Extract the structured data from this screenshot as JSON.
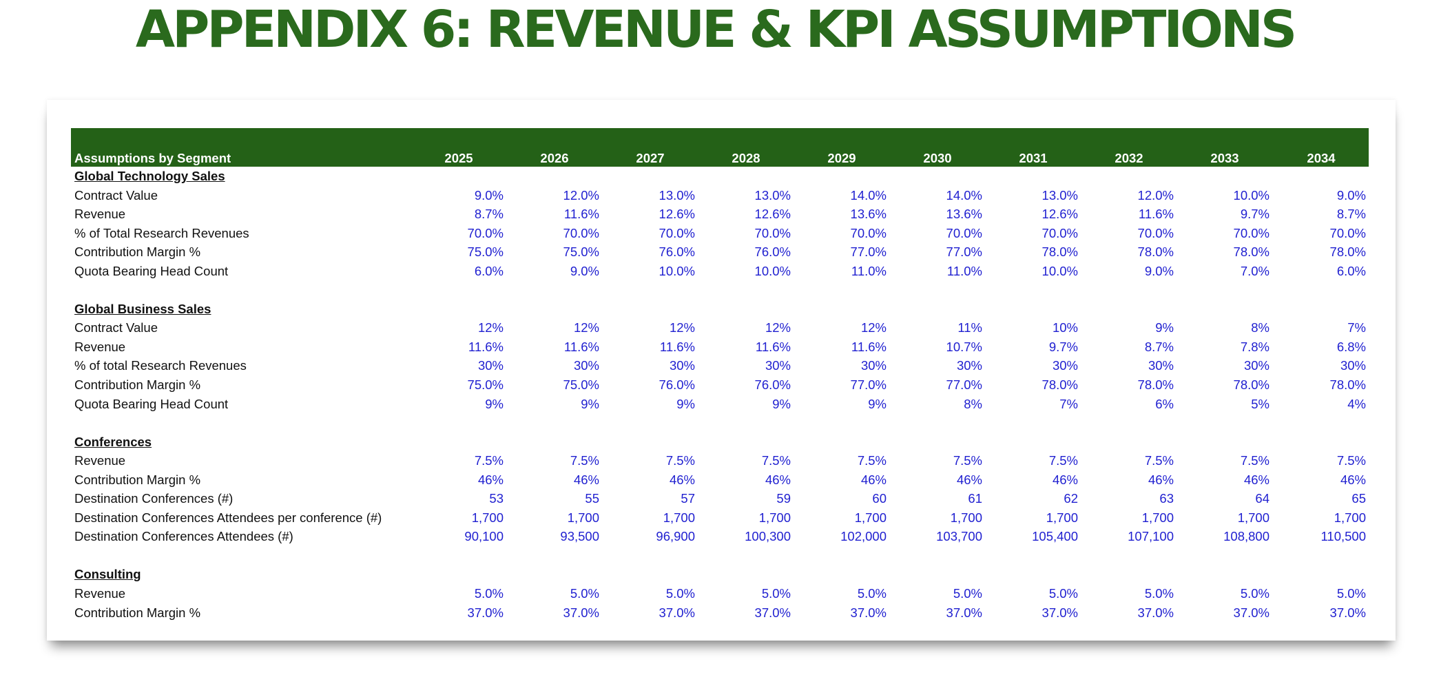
{
  "title": "APPENDIX 6: REVENUE & KPI ASSUMPTIONS",
  "table": {
    "header_label": "Assumptions by Segment",
    "years": [
      "2025",
      "2026",
      "2027",
      "2028",
      "2029",
      "2030",
      "2031",
      "2032",
      "2033",
      "2034"
    ],
    "sections": [
      {
        "name": "Global Technology Sales",
        "rows": [
          {
            "label": "Contract Value",
            "values": [
              "9.0%",
              "12.0%",
              "13.0%",
              "13.0%",
              "14.0%",
              "14.0%",
              "13.0%",
              "12.0%",
              "10.0%",
              "9.0%"
            ]
          },
          {
            "label": "Revenue",
            "values": [
              "8.7%",
              "11.6%",
              "12.6%",
              "12.6%",
              "13.6%",
              "13.6%",
              "12.6%",
              "11.6%",
              "9.7%",
              "8.7%"
            ]
          },
          {
            "label": "% of Total Research Revenues",
            "values": [
              "70.0%",
              "70.0%",
              "70.0%",
              "70.0%",
              "70.0%",
              "70.0%",
              "70.0%",
              "70.0%",
              "70.0%",
              "70.0%"
            ]
          },
          {
            "label": "Contribution Margin %",
            "values": [
              "75.0%",
              "75.0%",
              "76.0%",
              "76.0%",
              "77.0%",
              "77.0%",
              "78.0%",
              "78.0%",
              "78.0%",
              "78.0%"
            ]
          },
          {
            "label": "Quota Bearing Head Count",
            "values": [
              "6.0%",
              "9.0%",
              "10.0%",
              "10.0%",
              "11.0%",
              "11.0%",
              "10.0%",
              "9.0%",
              "7.0%",
              "6.0%"
            ]
          }
        ]
      },
      {
        "name": "Global Business Sales",
        "rows": [
          {
            "label": "Contract Value",
            "values": [
              "12%",
              "12%",
              "12%",
              "12%",
              "12%",
              "11%",
              "10%",
              "9%",
              "8%",
              "7%"
            ]
          },
          {
            "label": "Revenue",
            "values": [
              "11.6%",
              "11.6%",
              "11.6%",
              "11.6%",
              "11.6%",
              "10.7%",
              "9.7%",
              "8.7%",
              "7.8%",
              "6.8%"
            ]
          },
          {
            "label": "% of total Research Revenues",
            "values": [
              "30%",
              "30%",
              "30%",
              "30%",
              "30%",
              "30%",
              "30%",
              "30%",
              "30%",
              "30%"
            ]
          },
          {
            "label": "Contribution Margin %",
            "values": [
              "75.0%",
              "75.0%",
              "76.0%",
              "76.0%",
              "77.0%",
              "77.0%",
              "78.0%",
              "78.0%",
              "78.0%",
              "78.0%"
            ]
          },
          {
            "label": "Quota Bearing Head Count",
            "values": [
              "9%",
              "9%",
              "9%",
              "9%",
              "9%",
              "8%",
              "7%",
              "6%",
              "5%",
              "4%"
            ]
          }
        ]
      },
      {
        "name": "Conferences",
        "rows": [
          {
            "label": "Revenue",
            "values": [
              "7.5%",
              "7.5%",
              "7.5%",
              "7.5%",
              "7.5%",
              "7.5%",
              "7.5%",
              "7.5%",
              "7.5%",
              "7.5%"
            ]
          },
          {
            "label": "Contribution Margin %",
            "values": [
              "46%",
              "46%",
              "46%",
              "46%",
              "46%",
              "46%",
              "46%",
              "46%",
              "46%",
              "46%"
            ]
          },
          {
            "label": "Destination Conferences (#)",
            "values": [
              "53",
              "55",
              "57",
              "59",
              "60",
              "61",
              "62",
              "63",
              "64",
              "65"
            ]
          },
          {
            "label": "Destination Conferences Attendees per conference (#)",
            "values": [
              "1,700",
              "1,700",
              "1,700",
              "1,700",
              "1,700",
              "1,700",
              "1,700",
              "1,700",
              "1,700",
              "1,700"
            ]
          },
          {
            "label": "Destination Conferences Attendees (#)",
            "values": [
              "90,100",
              "93,500",
              "96,900",
              "100,300",
              "102,000",
              "103,700",
              "105,400",
              "107,100",
              "108,800",
              "110,500"
            ]
          }
        ]
      },
      {
        "name": "Consulting",
        "rows": [
          {
            "label": "Revenue",
            "values": [
              "5.0%",
              "5.0%",
              "5.0%",
              "5.0%",
              "5.0%",
              "5.0%",
              "5.0%",
              "5.0%",
              "5.0%",
              "5.0%"
            ]
          },
          {
            "label": "Contribution Margin %",
            "values": [
              "37.0%",
              "37.0%",
              "37.0%",
              "37.0%",
              "37.0%",
              "37.0%",
              "37.0%",
              "37.0%",
              "37.0%",
              "37.0%"
            ]
          }
        ]
      }
    ]
  }
}
